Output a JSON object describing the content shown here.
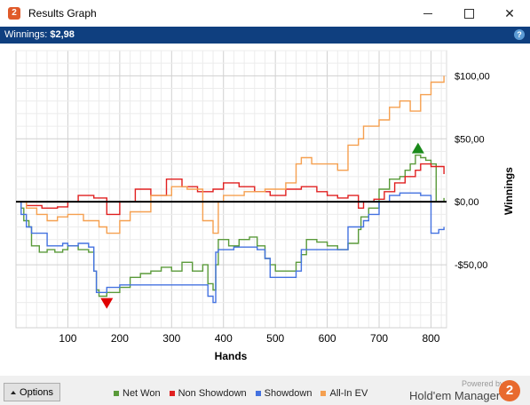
{
  "window": {
    "title": "Results Graph",
    "app_icon_text": "2"
  },
  "infobar": {
    "winnings_label": "Winnings:",
    "winnings_value": "$2,98",
    "help_text": "?"
  },
  "bottom": {
    "options_label": "Options",
    "powered_by": "Powered by",
    "brand": "Hold'em Manager",
    "brand_logo_text": "2"
  },
  "chart_data": {
    "type": "line",
    "xlabel": "Hands",
    "ylabel": "Winnings",
    "xlim": [
      0,
      830
    ],
    "ylim": [
      -100,
      120
    ],
    "x_ticks": [
      100,
      200,
      300,
      400,
      500,
      600,
      700,
      800
    ],
    "x_tick_labels": [
      "100",
      "200",
      "300",
      "400",
      "500",
      "600",
      "700",
      "800"
    ],
    "y_ticks": [
      -50,
      0,
      50,
      100
    ],
    "y_tick_labels": [
      "-$50,00",
      "$0,00",
      "$50,00",
      "$100,00"
    ],
    "grid": true,
    "legend_position": "bottom",
    "colors": {
      "Net Won": "#5a9a3a",
      "Non Showdown": "#e02020",
      "Showdown": "#4472e0",
      "All-In EV": "#f5a050"
    },
    "series": [
      {
        "name": "Net Won",
        "color": "#5a9a3a",
        "x": [
          0,
          10,
          15,
          25,
          30,
          45,
          60,
          75,
          90,
          100,
          120,
          140,
          150,
          155,
          160,
          175,
          200,
          220,
          240,
          260,
          280,
          300,
          320,
          340,
          360,
          370,
          380,
          385,
          390,
          410,
          430,
          450,
          465,
          480,
          490,
          500,
          520,
          540,
          550,
          560,
          580,
          600,
          620,
          640,
          660,
          665,
          680,
          700,
          720,
          740,
          750,
          760,
          770,
          780,
          790,
          800,
          810,
          825
        ],
        "y": [
          0,
          -5,
          -15,
          -20,
          -35,
          -40,
          -38,
          -40,
          -38,
          -35,
          -38,
          -40,
          -55,
          -70,
          -75,
          -72,
          -68,
          -60,
          -57,
          -55,
          -52,
          -55,
          -48,
          -55,
          -50,
          -65,
          -70,
          -50,
          -30,
          -35,
          -30,
          -28,
          -35,
          -45,
          -50,
          -55,
          -55,
          -48,
          -42,
          -30,
          -32,
          -35,
          -38,
          -33,
          -22,
          -12,
          -5,
          10,
          18,
          20,
          25,
          30,
          37,
          35,
          33,
          30,
          0,
          3
        ]
      },
      {
        "name": "Non Showdown",
        "color": "#e02020",
        "x": [
          0,
          20,
          50,
          80,
          100,
          120,
          150,
          175,
          200,
          230,
          260,
          290,
          320,
          350,
          380,
          400,
          430,
          460,
          490,
          520,
          550,
          580,
          600,
          620,
          640,
          660,
          670,
          690,
          710,
          730,
          750,
          770,
          780,
          800,
          825
        ],
        "y": [
          0,
          -3,
          -5,
          -4,
          0,
          5,
          3,
          -10,
          0,
          10,
          5,
          18,
          12,
          8,
          10,
          15,
          12,
          8,
          5,
          10,
          12,
          8,
          5,
          3,
          5,
          -5,
          0,
          2,
          8,
          15,
          20,
          25,
          30,
          28,
          22
        ]
      },
      {
        "name": "Showdown",
        "color": "#4472e0",
        "x": [
          0,
          10,
          20,
          30,
          60,
          90,
          100,
          120,
          140,
          150,
          155,
          175,
          200,
          250,
          300,
          330,
          360,
          370,
          380,
          385,
          390,
          420,
          450,
          465,
          480,
          490,
          540,
          550,
          600,
          620,
          640,
          660,
          670,
          680,
          700,
          720,
          740,
          780,
          790,
          800,
          815,
          825
        ],
        "y": [
          0,
          -10,
          -20,
          -25,
          -35,
          -33,
          -35,
          -33,
          -36,
          -55,
          -72,
          -68,
          -66,
          -66,
          -66,
          -66,
          -66,
          -75,
          -80,
          -40,
          -38,
          -36,
          -36,
          -38,
          -45,
          -60,
          -55,
          -38,
          -38,
          -38,
          -20,
          -20,
          -15,
          -10,
          0,
          5,
          7,
          5,
          5,
          -25,
          -22,
          -20
        ]
      },
      {
        "name": "All-In EV",
        "color": "#f5a050",
        "x": [
          0,
          20,
          40,
          60,
          80,
          100,
          130,
          160,
          175,
          200,
          220,
          260,
          300,
          330,
          360,
          380,
          390,
          400,
          440,
          480,
          520,
          540,
          550,
          570,
          600,
          620,
          640,
          660,
          670,
          700,
          720,
          740,
          760,
          780,
          800,
          825
        ],
        "y": [
          0,
          -5,
          -10,
          -15,
          -12,
          -10,
          -15,
          -20,
          -25,
          -15,
          -8,
          5,
          12,
          10,
          -15,
          -25,
          0,
          5,
          8,
          10,
          15,
          30,
          35,
          30,
          30,
          25,
          45,
          50,
          60,
          65,
          75,
          80,
          72,
          85,
          95,
          100
        ]
      }
    ],
    "annotations": [
      {
        "type": "max-marker",
        "x": 775,
        "y": 42,
        "color": "#1a8a1a"
      },
      {
        "type": "min-marker",
        "x": 175,
        "y": -80,
        "color": "#e00000"
      }
    ]
  }
}
